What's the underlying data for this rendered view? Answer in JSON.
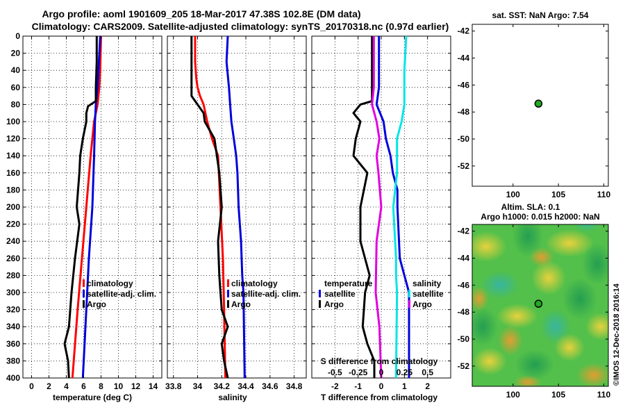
{
  "header": {
    "title_line1": "Argo profile: aoml 1901609_205 18-Mar-2017 47.38S 102.8E (DM data)",
    "title_line2": "Climatology: CARS2009. Satellite-adjusted climatology: synTS_20170318.nc (0.97d earlier)"
  },
  "colors": {
    "climatology": "#ff0000",
    "satellite": "#0000dd",
    "argo": "#000000",
    "salinity_diff": "#00e5e5",
    "temperature_diff": "#e000e0",
    "point_fill": "#22aa22"
  },
  "chart_data": [
    {
      "type": "line",
      "name": "temperature-profile",
      "xlabel": "temperature (deg C)",
      "ylabel": "",
      "xlim": [
        -1,
        15
      ],
      "ylim": [
        400,
        0
      ],
      "xticks": [
        "0",
        "2",
        "4",
        "6",
        "8",
        "10",
        "12",
        "14"
      ],
      "yticks": [
        "0",
        "20",
        "40",
        "60",
        "80",
        "100",
        "120",
        "140",
        "160",
        "180",
        "200",
        "220",
        "240",
        "260",
        "280",
        "300",
        "320",
        "340",
        "360",
        "380",
        "400"
      ],
      "grid": true,
      "legend": [
        "climatology",
        "satellite-adj. clim.",
        "Argo"
      ],
      "series": [
        {
          "name": "climatology",
          "depth": [
            0,
            40,
            60,
            80,
            100,
            140,
            200,
            260,
            320,
            400
          ],
          "values": [
            8.0,
            7.9,
            7.8,
            7.6,
            7.2,
            6.8,
            6.3,
            5.8,
            5.3,
            4.7
          ]
        },
        {
          "name": "satellite-adj. clim.",
          "depth": [
            0,
            40,
            60,
            80,
            100,
            140,
            200,
            260,
            320,
            400
          ],
          "values": [
            7.9,
            7.7,
            7.6,
            7.4,
            7.3,
            7.2,
            7.0,
            6.6,
            6.3,
            5.9
          ]
        },
        {
          "name": "Argo",
          "depth": [
            0,
            30,
            60,
            76,
            82,
            90,
            100,
            120,
            140,
            160,
            200,
            220,
            260,
            300,
            340,
            360,
            380,
            400
          ],
          "values": [
            7.5,
            7.5,
            7.4,
            7.4,
            6.5,
            6.3,
            6.3,
            5.9,
            5.6,
            5.5,
            5.2,
            5.5,
            5.0,
            4.6,
            4.3,
            3.8,
            4.2,
            4.3
          ]
        }
      ]
    },
    {
      "type": "line",
      "name": "salinity-profile",
      "xlabel": "salinity",
      "ylabel": "",
      "xlim": [
        33.75,
        34.9
      ],
      "ylim": [
        400,
        0
      ],
      "xticks": [
        "33.8",
        "34",
        "34.2",
        "34.4",
        "34.6",
        "34.8"
      ],
      "grid": true,
      "legend": [
        "climatology",
        "satellite-adj. clim.",
        "Argo"
      ],
      "series": [
        {
          "name": "climatology",
          "depth": [
            0,
            30,
            50,
            60,
            70,
            80,
            100,
            120,
            140,
            200,
            260,
            320,
            400
          ],
          "values": [
            33.98,
            33.98,
            33.99,
            34.0,
            34.02,
            34.05,
            34.08,
            34.12,
            34.17,
            34.19,
            34.21,
            34.22,
            34.23
          ]
        },
        {
          "name": "satellite-adj. clim.",
          "depth": [
            0,
            30,
            60,
            80,
            100,
            120,
            140,
            160,
            200,
            240,
            280,
            300,
            400
          ],
          "values": [
            34.25,
            34.24,
            34.26,
            34.27,
            34.28,
            34.3,
            34.32,
            34.33,
            34.34,
            34.36,
            34.37,
            34.38,
            34.39
          ]
        },
        {
          "name": "Argo",
          "depth": [
            0,
            30,
            70,
            80,
            90,
            100,
            120,
            140,
            160,
            200,
            240,
            280,
            300,
            320,
            340,
            360,
            380,
            400
          ],
          "values": [
            33.95,
            33.95,
            33.95,
            34.0,
            34.05,
            34.06,
            34.14,
            34.16,
            34.18,
            34.2,
            34.17,
            34.18,
            34.19,
            34.2,
            34.25,
            34.2,
            34.22,
            34.25
          ]
        }
      ]
    },
    {
      "type": "line",
      "name": "difference-profile",
      "xlabel": "T difference from climatology",
      "xlabel_top": "S difference from climatology",
      "ylabel": "",
      "xlim": [
        -3,
        3
      ],
      "ylim": [
        400,
        0
      ],
      "xticks": [
        "-2",
        "-1",
        "0",
        "1",
        "2"
      ],
      "sticks": [
        "-0.5",
        "-0.25",
        "0",
        "0.25",
        "0.5"
      ],
      "grid": true,
      "legend_temperature": {
        "title": "temperature",
        "entries": [
          "satellite",
          "Argo"
        ]
      },
      "legend_salinity": {
        "title": "salinity",
        "entries": [
          "satellite",
          "Argo"
        ]
      },
      "series": [
        {
          "name": "temperature satellite",
          "depth": [
            0,
            60,
            80,
            100,
            120,
            140,
            160,
            180,
            200,
            260,
            280,
            300,
            400
          ],
          "values": [
            -0.1,
            -0.1,
            -0.2,
            0.1,
            0.2,
            0.4,
            0.5,
            0.7,
            0.7,
            0.8,
            1.0,
            1.2,
            1.2
          ]
        },
        {
          "name": "temperature Argo",
          "depth": [
            0,
            60,
            76,
            80,
            90,
            100,
            120,
            140,
            160,
            200,
            240,
            280,
            300,
            340,
            360,
            380,
            400
          ],
          "values": [
            -0.4,
            -0.4,
            -0.4,
            -0.9,
            -1.2,
            -0.9,
            -1.1,
            -1.2,
            -0.6,
            -0.9,
            -0.9,
            -0.5,
            -0.7,
            -0.8,
            -0.6,
            -0.3,
            -0.3
          ]
        },
        {
          "name": "salinity satellite",
          "depth": [
            0,
            40,
            80,
            100,
            120,
            160,
            200,
            260,
            280,
            300,
            400
          ],
          "values": [
            0.27,
            0.25,
            0.25,
            0.22,
            0.17,
            0.17,
            0.13,
            0.16,
            0.16,
            0.17,
            0.16
          ]
        },
        {
          "name": "salinity Argo",
          "depth": [
            0,
            60,
            80,
            100,
            120,
            140,
            160,
            200,
            240,
            300,
            340,
            400
          ],
          "values": [
            -0.08,
            -0.08,
            -0.1,
            -0.05,
            -0.02,
            -0.05,
            -0.03,
            0.0,
            -0.05,
            -0.06,
            -0.02,
            0.0
          ]
        }
      ]
    },
    {
      "type": "scatter",
      "name": "sst-map",
      "title": "sat. SST: NaN Argo: 7.54",
      "xlim": [
        95.5,
        110.5
      ],
      "ylim": [
        -53.5,
        -41.5
      ],
      "xticks": [
        "100",
        "105",
        "110"
      ],
      "yticks": [
        "-42",
        "-44",
        "-46",
        "-48",
        "-50",
        "-52"
      ],
      "points": [
        {
          "lon": 102.8,
          "lat": -47.38
        }
      ]
    },
    {
      "type": "heatmap",
      "name": "sla-map",
      "title_line1": "Altim. SLA: 0.1",
      "title_line2": "Argo h1000: 0.015 h2000: NaN",
      "xlim": [
        95.5,
        110.5
      ],
      "ylim": [
        -53.5,
        -41.5
      ],
      "xticks": [
        "100",
        "105",
        "110"
      ],
      "yticks": [
        "-42",
        "-44",
        "-46",
        "-48",
        "-50",
        "-52"
      ],
      "points": [
        {
          "lon": 102.8,
          "lat": -47.38
        }
      ],
      "credit": "©IMOS 12-Dec-2018 2016:14"
    }
  ]
}
